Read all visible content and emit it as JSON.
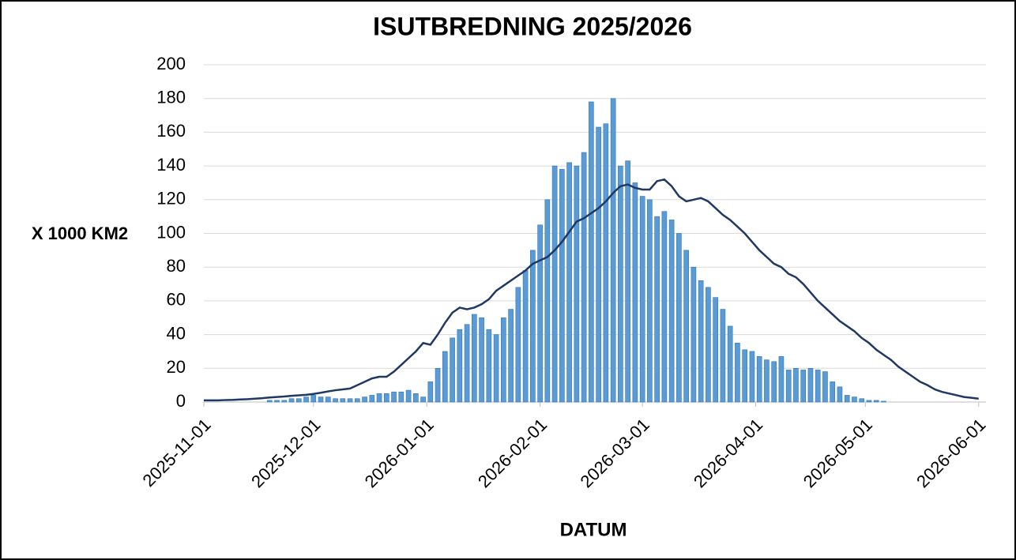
{
  "chart_data": {
    "type": "bar+line",
    "title": "ISUTBREDNING 2025/2026",
    "y_label": "X 1000 KM2",
    "x_label": "DATUM",
    "x": [
      "2025-11-01",
      "2025-11-03",
      "2025-11-05",
      "2025-11-07",
      "2025-11-09",
      "2025-11-11",
      "2025-11-13",
      "2025-11-15",
      "2025-11-17",
      "2025-11-19",
      "2025-11-21",
      "2025-11-23",
      "2025-11-25",
      "2025-11-27",
      "2025-11-29",
      "2025-12-01",
      "2025-12-03",
      "2025-12-05",
      "2025-12-07",
      "2025-12-09",
      "2025-12-11",
      "2025-12-13",
      "2025-12-15",
      "2025-12-17",
      "2025-12-19",
      "2025-12-21",
      "2025-12-23",
      "2025-12-25",
      "2025-12-27",
      "2025-12-29",
      "2025-12-31",
      "2026-01-02",
      "2026-01-04",
      "2026-01-06",
      "2026-01-08",
      "2026-01-10",
      "2026-01-12",
      "2026-01-14",
      "2026-01-16",
      "2026-01-18",
      "2026-01-20",
      "2026-01-22",
      "2026-01-24",
      "2026-01-26",
      "2026-01-28",
      "2026-01-30",
      "2026-02-01",
      "2026-02-03",
      "2026-02-05",
      "2026-02-07",
      "2026-02-09",
      "2026-02-11",
      "2026-02-13",
      "2026-02-15",
      "2026-02-17",
      "2026-02-19",
      "2026-02-21",
      "2026-02-23",
      "2026-02-25",
      "2026-02-27",
      "2026-03-01",
      "2026-03-03",
      "2026-03-05",
      "2026-03-07",
      "2026-03-09",
      "2026-03-11",
      "2026-03-13",
      "2026-03-15",
      "2026-03-17",
      "2026-03-19",
      "2026-03-21",
      "2026-03-23",
      "2026-03-25",
      "2026-03-27",
      "2026-03-29",
      "2026-03-31",
      "2026-04-02",
      "2026-04-04",
      "2026-04-06",
      "2026-04-08",
      "2026-04-10",
      "2026-04-12",
      "2026-04-14",
      "2026-04-16",
      "2026-04-18",
      "2026-04-20",
      "2026-04-22",
      "2026-04-24",
      "2026-04-26",
      "2026-04-28",
      "2026-04-30",
      "2026-05-02",
      "2026-05-04",
      "2026-05-06",
      "2026-05-08",
      "2026-05-10",
      "2026-05-12",
      "2026-05-14",
      "2026-05-16",
      "2026-05-18",
      "2026-05-20",
      "2026-05-22",
      "2026-05-24",
      "2026-05-26",
      "2026-05-28",
      "2026-05-30",
      "2026-06-01"
    ],
    "series": [
      {
        "type": "bar",
        "color": "#5b9bd5",
        "values": [
          0,
          0,
          0,
          0,
          0,
          0,
          0,
          0,
          0,
          1,
          1,
          1,
          2,
          2,
          3,
          4,
          3,
          3,
          2,
          2,
          2,
          2,
          3,
          4,
          5,
          5,
          6,
          6,
          7,
          5,
          3,
          12,
          20,
          30,
          38,
          43,
          46,
          52,
          50,
          43,
          40,
          50,
          55,
          68,
          78,
          90,
          105,
          120,
          140,
          138,
          142,
          140,
          148,
          178,
          163,
          165,
          180,
          140,
          143,
          130,
          122,
          120,
          110,
          113,
          108,
          100,
          90,
          80,
          72,
          68,
          62,
          55,
          45,
          35,
          31,
          30,
          27,
          25,
          24,
          27,
          19,
          20,
          19,
          20,
          19,
          18,
          12,
          9,
          4,
          3,
          2,
          1,
          1,
          0.5,
          0,
          0,
          0,
          0,
          0,
          0,
          0,
          0,
          0,
          0,
          0,
          0,
          0
        ]
      },
      {
        "type": "line",
        "color": "#1f3864",
        "values": [
          1,
          1,
          1,
          1.2,
          1.3,
          1.5,
          1.7,
          2,
          2.3,
          2.7,
          3,
          3.3,
          3.7,
          4,
          4.3,
          4.8,
          5.5,
          6.3,
          7,
          7.5,
          8,
          10,
          12,
          14,
          15,
          15,
          18,
          22,
          26,
          30,
          35,
          34,
          40,
          47,
          53,
          56,
          55,
          56,
          58,
          61,
          66,
          69,
          72,
          75,
          78,
          82,
          84,
          86,
          90,
          95,
          101,
          107,
          109,
          112,
          115,
          119,
          124,
          128,
          129,
          127,
          126,
          126,
          131,
          132,
          128,
          122,
          119,
          120,
          121,
          119,
          115,
          111,
          108,
          104,
          100,
          95,
          90,
          86,
          82,
          80,
          76,
          74,
          70,
          65,
          60,
          56,
          52,
          48,
          45,
          42,
          38,
          35,
          31,
          28,
          25,
          21,
          18,
          15,
          12,
          10,
          7.5,
          6,
          5,
          4,
          3,
          2.5,
          2
        ]
      }
    ],
    "xlim": [
      "2025-11-01",
      "2026-06-03"
    ],
    "xticks": [
      "2025-11-01",
      "2025-12-01",
      "2026-01-01",
      "2026-02-01",
      "2026-03-01",
      "2026-04-01",
      "2026-05-01",
      "2026-06-01"
    ],
    "ylim": [
      0,
      200
    ],
    "yticks": [
      0,
      20,
      40,
      60,
      80,
      100,
      120,
      140,
      160,
      180,
      200
    ],
    "grid": true
  }
}
